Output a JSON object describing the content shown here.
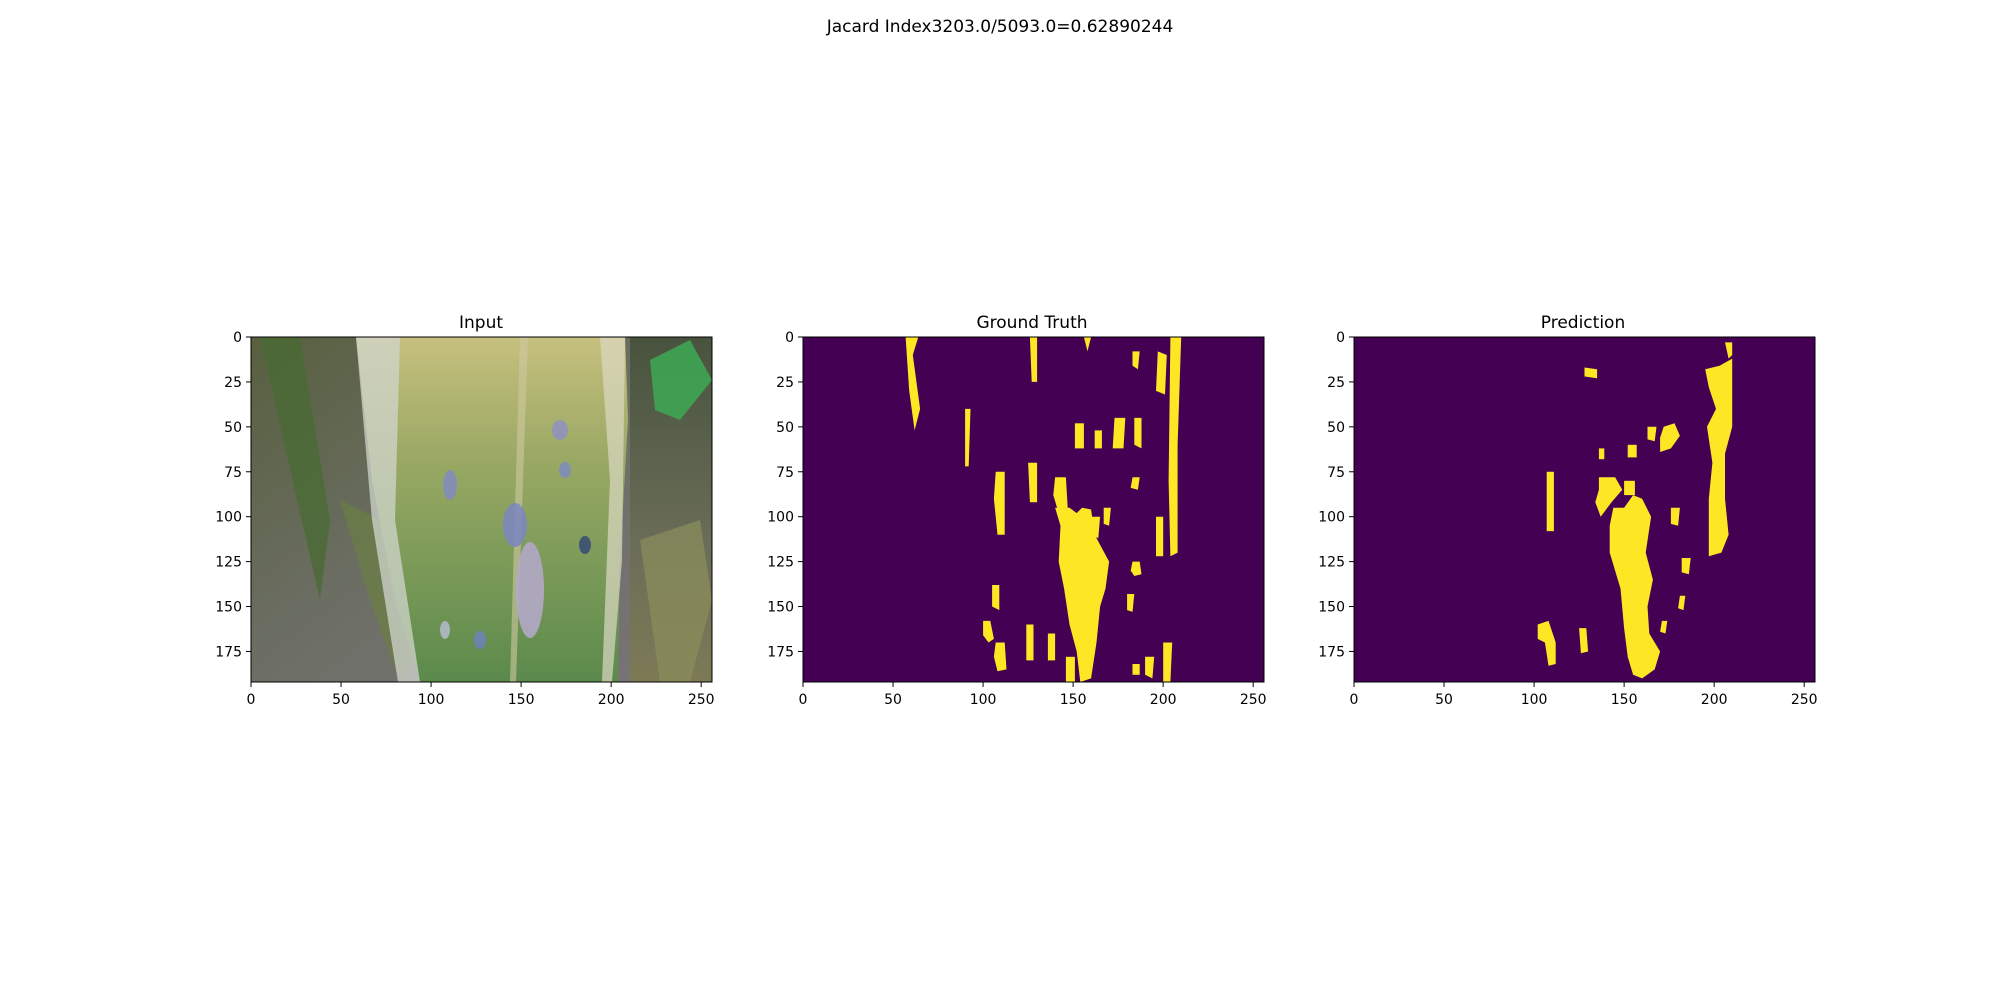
{
  "figure": {
    "suptitle": "Jacard Index3203.0/5093.0=0.62890244"
  },
  "panels": [
    {
      "id": "input",
      "title": "Input",
      "kind": "rgb-photo",
      "xticks": [
        "0",
        "50",
        "100",
        "150",
        "200",
        "250"
      ],
      "yticks": [
        "0",
        "25",
        "50",
        "75",
        "100",
        "125",
        "150",
        "175"
      ],
      "xlim": [
        0,
        256
      ],
      "ylim": [
        192,
        0
      ]
    },
    {
      "id": "ground-truth",
      "title": "Ground Truth",
      "kind": "mask",
      "xticks": [
        "0",
        "50",
        "100",
        "150",
        "200",
        "250"
      ],
      "yticks": [
        "0",
        "25",
        "50",
        "75",
        "100",
        "125",
        "150",
        "175"
      ],
      "xlim": [
        0,
        256
      ],
      "ylim": [
        192,
        0
      ],
      "regions": [
        [
          [
            57,
            0
          ],
          [
            64,
            0
          ],
          [
            61,
            10
          ],
          [
            65,
            40
          ],
          [
            62,
            52
          ],
          [
            59,
            30
          ]
        ],
        [
          [
            90,
            40
          ],
          [
            93,
            40
          ],
          [
            92,
            72
          ],
          [
            90,
            72
          ]
        ],
        [
          [
            126,
            0
          ],
          [
            130,
            0
          ],
          [
            130,
            25
          ],
          [
            127,
            25
          ]
        ],
        [
          [
            156,
            0
          ],
          [
            160,
            0
          ],
          [
            158,
            8
          ]
        ],
        [
          [
            183,
            8
          ],
          [
            187,
            8
          ],
          [
            186,
            18
          ],
          [
            183,
            16
          ]
        ],
        [
          [
            197,
            8
          ],
          [
            202,
            10
          ],
          [
            201,
            32
          ],
          [
            196,
            30
          ]
        ],
        [
          [
            204,
            0
          ],
          [
            210,
            0
          ],
          [
            208,
            60
          ],
          [
            208,
            120
          ],
          [
            204,
            122
          ],
          [
            203,
            80
          ]
        ],
        [
          [
            107,
            75
          ],
          [
            112,
            75
          ],
          [
            112,
            110
          ],
          [
            108,
            110
          ],
          [
            106,
            90
          ]
        ],
        [
          [
            125,
            70
          ],
          [
            130,
            70
          ],
          [
            130,
            92
          ],
          [
            126,
            92
          ]
        ],
        [
          [
            140,
            78
          ],
          [
            146,
            78
          ],
          [
            147,
            95
          ],
          [
            142,
            98
          ],
          [
            139,
            88
          ]
        ],
        [
          [
            151,
            48
          ],
          [
            156,
            48
          ],
          [
            156,
            62
          ],
          [
            151,
            62
          ]
        ],
        [
          [
            162,
            52
          ],
          [
            166,
            52
          ],
          [
            166,
            62
          ],
          [
            162,
            62
          ]
        ],
        [
          [
            173,
            45
          ],
          [
            179,
            45
          ],
          [
            178,
            62
          ],
          [
            172,
            62
          ]
        ],
        [
          [
            184,
            45
          ],
          [
            188,
            45
          ],
          [
            188,
            62
          ],
          [
            184,
            60
          ]
        ],
        [
          [
            183,
            78
          ],
          [
            187,
            78
          ],
          [
            186,
            85
          ],
          [
            182,
            84
          ]
        ],
        [
          [
            196,
            100
          ],
          [
            200,
            100
          ],
          [
            200,
            122
          ],
          [
            196,
            122
          ]
        ],
        [
          [
            140,
            95
          ],
          [
            148,
            95
          ],
          [
            152,
            98
          ],
          [
            155,
            95
          ],
          [
            160,
            96
          ],
          [
            162,
            110
          ],
          [
            170,
            125
          ],
          [
            168,
            140
          ],
          [
            165,
            150
          ],
          [
            163,
            170
          ],
          [
            160,
            190
          ],
          [
            154,
            192
          ],
          [
            152,
            175
          ],
          [
            148,
            160
          ],
          [
            145,
            140
          ],
          [
            142,
            125
          ],
          [
            143,
            105
          ]
        ],
        [
          [
            160,
            100
          ],
          [
            165,
            100
          ],
          [
            164,
            112
          ],
          [
            160,
            110
          ]
        ],
        [
          [
            167,
            95
          ],
          [
            171,
            95
          ],
          [
            170,
            105
          ],
          [
            167,
            104
          ]
        ],
        [
          [
            183,
            125
          ],
          [
            187,
            125
          ],
          [
            188,
            132
          ],
          [
            184,
            133
          ],
          [
            182,
            130
          ]
        ],
        [
          [
            180,
            143
          ],
          [
            184,
            143
          ],
          [
            183,
            153
          ],
          [
            180,
            152
          ]
        ],
        [
          [
            105,
            138
          ],
          [
            109,
            138
          ],
          [
            109,
            152
          ],
          [
            105,
            150
          ]
        ],
        [
          [
            100,
            158
          ],
          [
            104,
            158
          ],
          [
            106,
            168
          ],
          [
            103,
            170
          ],
          [
            100,
            166
          ]
        ],
        [
          [
            107,
            170
          ],
          [
            112,
            170
          ],
          [
            113,
            185
          ],
          [
            108,
            186
          ],
          [
            106,
            178
          ]
        ],
        [
          [
            124,
            160
          ],
          [
            128,
            160
          ],
          [
            128,
            180
          ],
          [
            124,
            180
          ]
        ],
        [
          [
            136,
            165
          ],
          [
            140,
            165
          ],
          [
            140,
            180
          ],
          [
            136,
            180
          ]
        ],
        [
          [
            146,
            178
          ],
          [
            151,
            178
          ],
          [
            151,
            192
          ],
          [
            146,
            192
          ]
        ],
        [
          [
            183,
            182
          ],
          [
            187,
            182
          ],
          [
            187,
            188
          ],
          [
            183,
            188
          ]
        ],
        [
          [
            190,
            178
          ],
          [
            195,
            178
          ],
          [
            194,
            190
          ],
          [
            190,
            188
          ]
        ],
        [
          [
            200,
            170
          ],
          [
            205,
            170
          ],
          [
            204,
            192
          ],
          [
            200,
            192
          ]
        ]
      ]
    },
    {
      "id": "prediction",
      "title": "Prediction",
      "kind": "mask",
      "xticks": [
        "0",
        "50",
        "100",
        "150",
        "200",
        "250"
      ],
      "yticks": [
        "0",
        "25",
        "50",
        "75",
        "100",
        "125",
        "150",
        "175"
      ],
      "xlim": [
        0,
        256
      ],
      "ylim": [
        192,
        0
      ],
      "regions": [
        [
          [
            128,
            17
          ],
          [
            135,
            18
          ],
          [
            135,
            23
          ],
          [
            128,
            22
          ]
        ],
        [
          [
            206,
            3
          ],
          [
            210,
            3
          ],
          [
            210,
            10
          ],
          [
            208,
            12
          ]
        ],
        [
          [
            195,
            18
          ],
          [
            203,
            16
          ],
          [
            210,
            12
          ],
          [
            210,
            50
          ],
          [
            206,
            65
          ],
          [
            206,
            90
          ],
          [
            208,
            110
          ],
          [
            204,
            120
          ],
          [
            197,
            122
          ],
          [
            197,
            90
          ],
          [
            199,
            70
          ],
          [
            196,
            50
          ],
          [
            201,
            40
          ],
          [
            197,
            28
          ]
        ],
        [
          [
            163,
            50
          ],
          [
            168,
            50
          ],
          [
            167,
            58
          ],
          [
            163,
            57
          ]
        ],
        [
          [
            172,
            50
          ],
          [
            178,
            48
          ],
          [
            181,
            55
          ],
          [
            176,
            62
          ],
          [
            170,
            64
          ],
          [
            170,
            56
          ]
        ],
        [
          [
            152,
            60
          ],
          [
            157,
            60
          ],
          [
            157,
            67
          ],
          [
            152,
            67
          ]
        ],
        [
          [
            136,
            62
          ],
          [
            139,
            62
          ],
          [
            139,
            68
          ],
          [
            136,
            68
          ]
        ],
        [
          [
            107,
            75
          ],
          [
            111,
            75
          ],
          [
            111,
            108
          ],
          [
            107,
            108
          ]
        ],
        [
          [
            136,
            78
          ],
          [
            145,
            78
          ],
          [
            149,
            85
          ],
          [
            143,
            92
          ],
          [
            137,
            100
          ],
          [
            134,
            92
          ],
          [
            136,
            85
          ]
        ],
        [
          [
            150,
            80
          ],
          [
            156,
            80
          ],
          [
            156,
            88
          ],
          [
            150,
            88
          ]
        ],
        [
          [
            144,
            95
          ],
          [
            150,
            95
          ],
          [
            155,
            88
          ],
          [
            160,
            90
          ],
          [
            165,
            100
          ],
          [
            162,
            120
          ],
          [
            166,
            135
          ],
          [
            163,
            150
          ],
          [
            164,
            165
          ],
          [
            170,
            175
          ],
          [
            167,
            185
          ],
          [
            160,
            190
          ],
          [
            155,
            188
          ],
          [
            152,
            178
          ],
          [
            150,
            162
          ],
          [
            148,
            140
          ],
          [
            142,
            120
          ],
          [
            142,
            105
          ]
        ],
        [
          [
            176,
            95
          ],
          [
            181,
            95
          ],
          [
            180,
            105
          ],
          [
            176,
            104
          ]
        ],
        [
          [
            182,
            123
          ],
          [
            187,
            123
          ],
          [
            186,
            132
          ],
          [
            182,
            131
          ]
        ],
        [
          [
            181,
            144
          ],
          [
            184,
            144
          ],
          [
            183,
            152
          ],
          [
            180,
            151
          ]
        ],
        [
          [
            171,
            158
          ],
          [
            174,
            158
          ],
          [
            173,
            165
          ],
          [
            170,
            164
          ]
        ],
        [
          [
            102,
            160
          ],
          [
            108,
            158
          ],
          [
            112,
            170
          ],
          [
            112,
            182
          ],
          [
            108,
            183
          ],
          [
            106,
            170
          ],
          [
            102,
            168
          ]
        ],
        [
          [
            125,
            162
          ],
          [
            129,
            162
          ],
          [
            130,
            175
          ],
          [
            126,
            176
          ]
        ]
      ]
    }
  ],
  "colors": {
    "mask_background": "#440154",
    "mask_foreground": "#fde725"
  }
}
